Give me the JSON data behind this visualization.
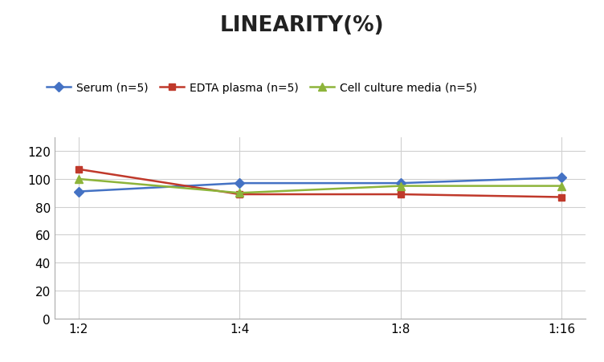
{
  "title": "LINEARITY(%)",
  "x_labels": [
    "1:2",
    "1:4",
    "1:8",
    "1:16"
  ],
  "series": [
    {
      "label": "Serum (n=5)",
      "values": [
        91,
        97,
        97,
        101
      ],
      "color": "#4472C4",
      "marker": "D",
      "markersize": 6,
      "linewidth": 1.8
    },
    {
      "label": "EDTA plasma (n=5)",
      "values": [
        107,
        89,
        89,
        87
      ],
      "color": "#C0392B",
      "marker": "s",
      "markersize": 6,
      "linewidth": 1.8
    },
    {
      "label": "Cell culture media (n=5)",
      "values": [
        100,
        90,
        95,
        95
      ],
      "color": "#8DB43A",
      "marker": "^",
      "markersize": 7,
      "linewidth": 1.8
    }
  ],
  "ylim": [
    0,
    130
  ],
  "yticks": [
    0,
    20,
    40,
    60,
    80,
    100,
    120
  ],
  "background_color": "#ffffff",
  "grid_color": "#d0d0d0",
  "title_fontsize": 19,
  "legend_fontsize": 10,
  "tick_fontsize": 11
}
